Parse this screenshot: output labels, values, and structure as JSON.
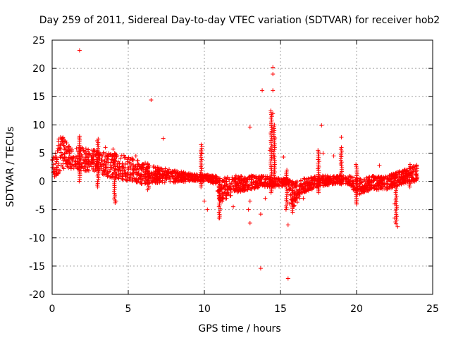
{
  "chart_data": {
    "type": "scatter",
    "title": "Day 259 of 2011, Sidereal Day-to-day VTEC variation (SDTVAR) for receiver hob2",
    "xlabel": "GPS time / hours",
    "ylabel": "SDTVAR / TECUs",
    "xlim": [
      0,
      25
    ],
    "ylim": [
      -20,
      25
    ],
    "xticks": [
      0,
      5,
      10,
      15,
      20,
      25
    ],
    "yticks": [
      -20,
      -15,
      -10,
      -5,
      0,
      5,
      10,
      15,
      20,
      25
    ],
    "xtick_labels": [
      "0",
      "5",
      "10",
      "15",
      "20",
      "25"
    ],
    "ytick_labels": [
      "-20",
      "-15",
      "-10",
      "-5",
      "0",
      "5",
      "10",
      "15",
      "20",
      "25"
    ],
    "grid": true,
    "marker": "+",
    "series": [
      {
        "name": "hob2",
        "color": "#ff0000",
        "band": [
          {
            "x": 0.0,
            "lo": 0.5,
            "hi": 4.0
          },
          {
            "x": 0.3,
            "lo": 1.0,
            "hi": 5.5
          },
          {
            "x": 0.5,
            "lo": 1.5,
            "hi": 8.5
          },
          {
            "x": 0.8,
            "lo": 2.0,
            "hi": 7.5
          },
          {
            "x": 1.2,
            "lo": 2.0,
            "hi": 6.0
          },
          {
            "x": 2.0,
            "lo": 1.8,
            "hi": 6.0
          },
          {
            "x": 3.0,
            "lo": 1.5,
            "hi": 5.5
          },
          {
            "x": 3.5,
            "lo": 1.0,
            "hi": 5.0
          },
          {
            "x": 4.0,
            "lo": 0.5,
            "hi": 5.0
          },
          {
            "x": 5.0,
            "lo": 0.0,
            "hi": 4.5
          },
          {
            "x": 6.0,
            "lo": -0.5,
            "hi": 3.5
          },
          {
            "x": 7.0,
            "lo": -0.3,
            "hi": 2.5
          },
          {
            "x": 8.0,
            "lo": -0.2,
            "hi": 2.0
          },
          {
            "x": 9.0,
            "lo": 0.0,
            "hi": 1.5
          },
          {
            "x": 10.0,
            "lo": 0.0,
            "hi": 1.2
          },
          {
            "x": 10.8,
            "lo": -0.5,
            "hi": 1.0
          },
          {
            "x": 11.0,
            "lo": -4.0,
            "hi": 0.5
          },
          {
            "x": 12.0,
            "lo": -2.0,
            "hi": 1.0
          },
          {
            "x": 13.0,
            "lo": -1.5,
            "hi": 1.0
          },
          {
            "x": 14.0,
            "lo": -1.0,
            "hi": 1.0
          },
          {
            "x": 15.0,
            "lo": -1.0,
            "hi": 0.5
          },
          {
            "x": 15.5,
            "lo": -0.5,
            "hi": 0.5
          },
          {
            "x": 15.8,
            "lo": -5.0,
            "hi": 0.0
          },
          {
            "x": 16.5,
            "lo": -2.0,
            "hi": 0.5
          },
          {
            "x": 17.5,
            "lo": -1.0,
            "hi": 1.0
          },
          {
            "x": 18.5,
            "lo": -0.5,
            "hi": 1.0
          },
          {
            "x": 19.5,
            "lo": -0.5,
            "hi": 1.0
          },
          {
            "x": 20.0,
            "lo": -2.5,
            "hi": 0.5
          },
          {
            "x": 21.0,
            "lo": -1.5,
            "hi": 1.0
          },
          {
            "x": 22.0,
            "lo": -1.5,
            "hi": 1.0
          },
          {
            "x": 23.0,
            "lo": -0.5,
            "hi": 2.0
          },
          {
            "x": 24.0,
            "lo": 0.0,
            "hi": 3.0
          }
        ],
        "outliers": [
          {
            "x": 1.8,
            "y": 23.2
          },
          {
            "x": 6.5,
            "y": 14.4
          },
          {
            "x": 7.3,
            "y": 7.6
          },
          {
            "x": 13.0,
            "y": 9.6
          },
          {
            "x": 13.8,
            "y": 16.1
          },
          {
            "x": 14.5,
            "y": 20.2
          },
          {
            "x": 14.5,
            "y": 19.0
          },
          {
            "x": 14.5,
            "y": 16.1
          },
          {
            "x": 14.5,
            "y": 12.0
          },
          {
            "x": 17.7,
            "y": 9.9
          },
          {
            "x": 19.0,
            "y": 7.8
          },
          {
            "x": 13.7,
            "y": -15.4
          },
          {
            "x": 15.5,
            "y": -17.2
          },
          {
            "x": 15.5,
            "y": -7.7
          },
          {
            "x": 13.0,
            "y": -7.4
          },
          {
            "x": 13.7,
            "y": -5.8
          },
          {
            "x": 10.2,
            "y": -5.0
          },
          {
            "x": 11.9,
            "y": -4.5
          },
          {
            "x": 12.9,
            "y": -5.0
          },
          {
            "x": 13.0,
            "y": -3.5
          },
          {
            "x": 4.0,
            "y": 5.7
          },
          {
            "x": 9.8,
            "y": 5.0
          },
          {
            "x": 22.7,
            "y": -8.0
          },
          {
            "x": 22.5,
            "y": -4.0
          },
          {
            "x": 20.0,
            "y": -4.0
          },
          {
            "x": 15.2,
            "y": 4.3
          },
          {
            "x": 3.5,
            "y": 6.0
          },
          {
            "x": 4.2,
            "y": -3.5
          },
          {
            "x": 10.0,
            "y": -3.5
          },
          {
            "x": 18.5,
            "y": 4.5
          },
          {
            "x": 21.5,
            "y": 2.8
          },
          {
            "x": 14.3,
            "y": 5.5
          },
          {
            "x": 14.0,
            "y": -3.0
          },
          {
            "x": 15.6,
            "y": -4.0
          },
          {
            "x": 22.5,
            "y": -6.5
          },
          {
            "x": 5.5,
            "y": 4.5
          },
          {
            "x": 16.5,
            "y": -3.0
          },
          {
            "x": 8.5,
            "y": 1.5
          },
          {
            "x": 11.0,
            "y": -6.5
          },
          {
            "x": 17.8,
            "y": 5.0
          }
        ],
        "spikes": [
          {
            "x": 1.8,
            "lo": 0.0,
            "hi": 8.0
          },
          {
            "x": 3.0,
            "lo": -1.0,
            "hi": 7.5
          },
          {
            "x": 4.1,
            "lo": -3.8,
            "hi": 5.0
          },
          {
            "x": 6.3,
            "lo": -1.5,
            "hi": 3.0
          },
          {
            "x": 9.8,
            "lo": -1.0,
            "hi": 6.5
          },
          {
            "x": 11.0,
            "lo": -6.5,
            "hi": 0.5
          },
          {
            "x": 14.4,
            "lo": -2.0,
            "hi": 12.5
          },
          {
            "x": 14.6,
            "lo": -1.0,
            "hi": 10.0
          },
          {
            "x": 15.4,
            "lo": -5.0,
            "hi": 2.0
          },
          {
            "x": 15.8,
            "lo": -5.5,
            "hi": 0.0
          },
          {
            "x": 17.5,
            "lo": -2.0,
            "hi": 5.5
          },
          {
            "x": 19.0,
            "lo": -0.5,
            "hi": 6.0
          },
          {
            "x": 20.0,
            "lo": -4.0,
            "hi": 3.0
          },
          {
            "x": 22.6,
            "lo": -7.5,
            "hi": -1.0
          },
          {
            "x": 23.5,
            "lo": -1.0,
            "hi": 3.0
          }
        ]
      }
    ]
  }
}
